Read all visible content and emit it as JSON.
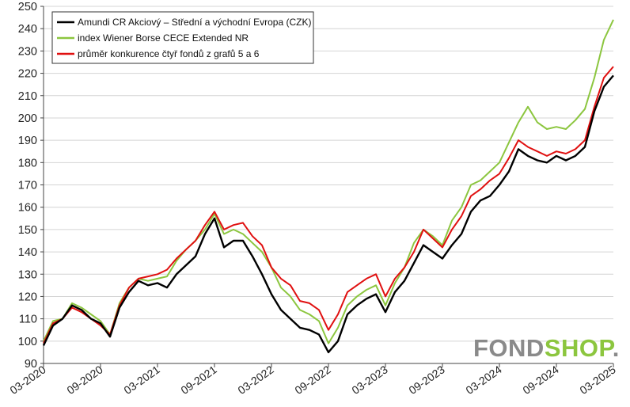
{
  "chart_data": {
    "type": "line",
    "title": "",
    "xlabel": "",
    "ylabel": "",
    "ylim": [
      90,
      250
    ],
    "y_ticks": [
      90,
      100,
      110,
      120,
      130,
      140,
      150,
      160,
      170,
      180,
      190,
      200,
      210,
      220,
      230,
      240,
      250
    ],
    "x_range": [
      "03-2020",
      "03-2025"
    ],
    "x_ticks": [
      "03-2020",
      "09-2020",
      "03-2021",
      "09-2021",
      "03-2022",
      "09-2022",
      "03-2023",
      "09-2023",
      "03-2024",
      "09-2024",
      "03-2025"
    ],
    "grid": "horizontal",
    "legend_position": "top-left",
    "series": [
      {
        "name": "Amundi CR Akciový – Střední a východní Evropa (CZK)",
        "color": "#000000",
        "points": [
          [
            "03-2020",
            98
          ],
          [
            "04-2020",
            107
          ],
          [
            "05-2020",
            110
          ],
          [
            "06-2020",
            116
          ],
          [
            "07-2020",
            114
          ],
          [
            "08-2020",
            110
          ],
          [
            "09-2020",
            108
          ],
          [
            "10-2020",
            102
          ],
          [
            "11-2020",
            115
          ],
          [
            "12-2020",
            122
          ],
          [
            "01-2021",
            127
          ],
          [
            "02-2021",
            125
          ],
          [
            "03-2021",
            126
          ],
          [
            "04-2021",
            124
          ],
          [
            "05-2021",
            130
          ],
          [
            "06-2021",
            134
          ],
          [
            "07-2021",
            138
          ],
          [
            "08-2021",
            148
          ],
          [
            "09-2021",
            155
          ],
          [
            "10-2021",
            142
          ],
          [
            "11-2021",
            145
          ],
          [
            "12-2021",
            145
          ],
          [
            "01-2022",
            138
          ],
          [
            "02-2022",
            130
          ],
          [
            "03-2022",
            121
          ],
          [
            "04-2022",
            114
          ],
          [
            "05-2022",
            110
          ],
          [
            "06-2022",
            106
          ],
          [
            "07-2022",
            105
          ],
          [
            "08-2022",
            103
          ],
          [
            "09-2022",
            95
          ],
          [
            "10-2022",
            100
          ],
          [
            "11-2022",
            112
          ],
          [
            "12-2022",
            116
          ],
          [
            "01-2023",
            119
          ],
          [
            "02-2023",
            121
          ],
          [
            "03-2023",
            113
          ],
          [
            "04-2023",
            122
          ],
          [
            "05-2023",
            127
          ],
          [
            "06-2023",
            135
          ],
          [
            "07-2023",
            143
          ],
          [
            "08-2023",
            140
          ],
          [
            "09-2023",
            137
          ],
          [
            "10-2023",
            143
          ],
          [
            "11-2023",
            148
          ],
          [
            "12-2023",
            158
          ],
          [
            "01-2024",
            163
          ],
          [
            "02-2024",
            165
          ],
          [
            "03-2024",
            170
          ],
          [
            "04-2024",
            176
          ],
          [
            "05-2024",
            186
          ],
          [
            "06-2024",
            183
          ],
          [
            "07-2024",
            181
          ],
          [
            "08-2024",
            180
          ],
          [
            "09-2024",
            183
          ],
          [
            "10-2024",
            181
          ],
          [
            "11-2024",
            183
          ],
          [
            "12-2024",
            187
          ],
          [
            "01-2025",
            203
          ],
          [
            "02-2025",
            214
          ],
          [
            "03-2025",
            219
          ]
        ]
      },
      {
        "name": "index Wiener Borse CECE Extended NR",
        "color": "#8cc63f",
        "points": [
          [
            "03-2020",
            100
          ],
          [
            "04-2020",
            109
          ],
          [
            "05-2020",
            110
          ],
          [
            "06-2020",
            117
          ],
          [
            "07-2020",
            115
          ],
          [
            "08-2020",
            112
          ],
          [
            "09-2020",
            109
          ],
          [
            "10-2020",
            103
          ],
          [
            "11-2020",
            117
          ],
          [
            "12-2020",
            124
          ],
          [
            "01-2021",
            128
          ],
          [
            "02-2021",
            127
          ],
          [
            "03-2021",
            128
          ],
          [
            "04-2021",
            129
          ],
          [
            "05-2021",
            136
          ],
          [
            "06-2021",
            141
          ],
          [
            "07-2021",
            145
          ],
          [
            "08-2021",
            150
          ],
          [
            "09-2021",
            157
          ],
          [
            "10-2021",
            148
          ],
          [
            "11-2021",
            150
          ],
          [
            "12-2021",
            148
          ],
          [
            "01-2022",
            144
          ],
          [
            "02-2022",
            140
          ],
          [
            "03-2022",
            133
          ],
          [
            "04-2022",
            124
          ],
          [
            "05-2022",
            120
          ],
          [
            "06-2022",
            114
          ],
          [
            "07-2022",
            112
          ],
          [
            "08-2022",
            109
          ],
          [
            "09-2022",
            99
          ],
          [
            "10-2022",
            106
          ],
          [
            "11-2022",
            116
          ],
          [
            "12-2022",
            120
          ],
          [
            "01-2023",
            123
          ],
          [
            "02-2023",
            125
          ],
          [
            "03-2023",
            116
          ],
          [
            "04-2023",
            126
          ],
          [
            "05-2023",
            133
          ],
          [
            "06-2023",
            144
          ],
          [
            "07-2023",
            150
          ],
          [
            "08-2023",
            147
          ],
          [
            "09-2023",
            143
          ],
          [
            "10-2023",
            154
          ],
          [
            "11-2023",
            160
          ],
          [
            "12-2023",
            170
          ],
          [
            "01-2024",
            172
          ],
          [
            "02-2024",
            176
          ],
          [
            "03-2024",
            180
          ],
          [
            "04-2024",
            189
          ],
          [
            "05-2024",
            198
          ],
          [
            "06-2024",
            205
          ],
          [
            "07-2024",
            198
          ],
          [
            "08-2024",
            195
          ],
          [
            "09-2024",
            196
          ],
          [
            "10-2024",
            195
          ],
          [
            "11-2024",
            199
          ],
          [
            "12-2024",
            204
          ],
          [
            "01-2025",
            218
          ],
          [
            "02-2025",
            235
          ],
          [
            "03-2025",
            244
          ]
        ]
      },
      {
        "name": "průměr konkurence čtyř fondů z grafů 5 a 6",
        "color": "#e01010",
        "points": [
          [
            "03-2020",
            99
          ],
          [
            "04-2020",
            108
          ],
          [
            "05-2020",
            110
          ],
          [
            "06-2020",
            115
          ],
          [
            "07-2020",
            113
          ],
          [
            "08-2020",
            110
          ],
          [
            "09-2020",
            107
          ],
          [
            "10-2020",
            103
          ],
          [
            "11-2020",
            116
          ],
          [
            "12-2020",
            124
          ],
          [
            "01-2021",
            128
          ],
          [
            "02-2021",
            129
          ],
          [
            "03-2021",
            130
          ],
          [
            "04-2021",
            132
          ],
          [
            "05-2021",
            137
          ],
          [
            "06-2021",
            141
          ],
          [
            "07-2021",
            145
          ],
          [
            "08-2021",
            152
          ],
          [
            "09-2021",
            158
          ],
          [
            "10-2021",
            150
          ],
          [
            "11-2021",
            152
          ],
          [
            "12-2021",
            153
          ],
          [
            "01-2022",
            147
          ],
          [
            "02-2022",
            143
          ],
          [
            "03-2022",
            133
          ],
          [
            "04-2022",
            128
          ],
          [
            "05-2022",
            125
          ],
          [
            "06-2022",
            118
          ],
          [
            "07-2022",
            117
          ],
          [
            "08-2022",
            114
          ],
          [
            "09-2022",
            105
          ],
          [
            "10-2022",
            112
          ],
          [
            "11-2022",
            122
          ],
          [
            "12-2022",
            125
          ],
          [
            "01-2023",
            128
          ],
          [
            "02-2023",
            130
          ],
          [
            "03-2023",
            120
          ],
          [
            "04-2023",
            128
          ],
          [
            "05-2023",
            133
          ],
          [
            "06-2023",
            140
          ],
          [
            "07-2023",
            150
          ],
          [
            "08-2023",
            146
          ],
          [
            "09-2023",
            142
          ],
          [
            "10-2023",
            150
          ],
          [
            "11-2023",
            156
          ],
          [
            "12-2023",
            165
          ],
          [
            "01-2024",
            168
          ],
          [
            "02-2024",
            172
          ],
          [
            "03-2024",
            175
          ],
          [
            "04-2024",
            182
          ],
          [
            "05-2024",
            190
          ],
          [
            "06-2024",
            187
          ],
          [
            "07-2024",
            185
          ],
          [
            "08-2024",
            183
          ],
          [
            "09-2024",
            185
          ],
          [
            "10-2024",
            184
          ],
          [
            "11-2024",
            186
          ],
          [
            "12-2024",
            190
          ],
          [
            "01-2025",
            205
          ],
          [
            "02-2025",
            218
          ],
          [
            "03-2025",
            223
          ]
        ]
      }
    ]
  },
  "brand": {
    "part1": "FOND",
    "part2": "SHOP",
    "dot": ".",
    "color_part1": "#8a8a8a",
    "color_part2": "#8cc63f"
  }
}
